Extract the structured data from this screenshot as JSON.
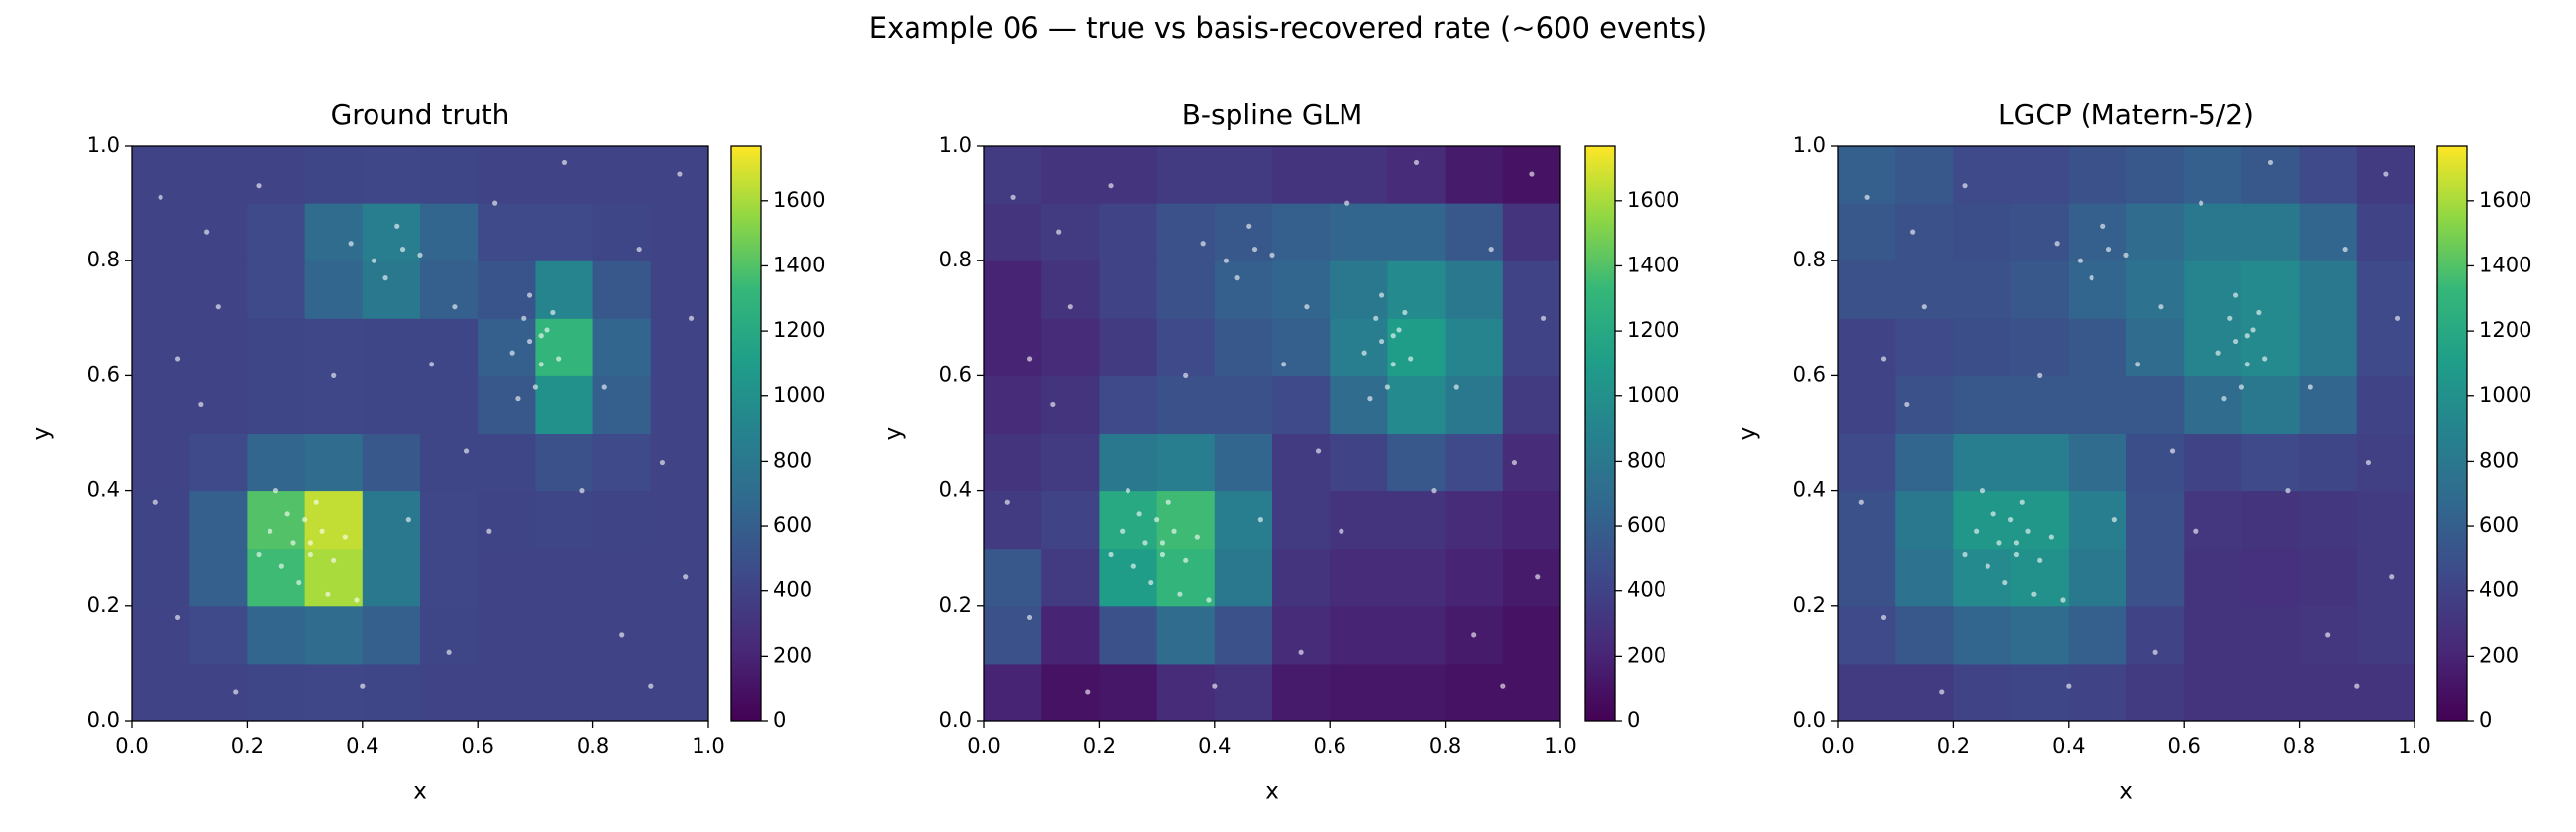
{
  "title": "Example 06 — true vs basis-recovered rate (~600 events)",
  "events": {
    "x": [
      0.28,
      0.31,
      0.33,
      0.26,
      0.3,
      0.35,
      0.24,
      0.29,
      0.32,
      0.37,
      0.27,
      0.34,
      0.22,
      0.31,
      0.39,
      0.25,
      0.69,
      0.71,
      0.68,
      0.72,
      0.7,
      0.66,
      0.74,
      0.69,
      0.73,
      0.67,
      0.71,
      0.42,
      0.47,
      0.44,
      0.5,
      0.38,
      0.46,
      0.05,
      0.12,
      0.08,
      0.15,
      0.55,
      0.62,
      0.85,
      0.92,
      0.88,
      0.95,
      0.58,
      0.18,
      0.4,
      0.78,
      0.96,
      0.52,
      0.22,
      0.63,
      0.82,
      0.04,
      0.48,
      0.9,
      0.13,
      0.75,
      0.35,
      0.56,
      0.08,
      0.97
    ],
    "y": [
      0.31,
      0.29,
      0.33,
      0.27,
      0.35,
      0.28,
      0.33,
      0.24,
      0.38,
      0.32,
      0.36,
      0.22,
      0.29,
      0.31,
      0.21,
      0.4,
      0.66,
      0.62,
      0.7,
      0.68,
      0.58,
      0.64,
      0.63,
      0.74,
      0.71,
      0.56,
      0.67,
      0.8,
      0.82,
      0.77,
      0.81,
      0.83,
      0.86,
      0.91,
      0.55,
      0.18,
      0.72,
      0.12,
      0.33,
      0.15,
      0.45,
      0.82,
      0.95,
      0.47,
      0.05,
      0.06,
      0.4,
      0.25,
      0.62,
      0.93,
      0.9,
      0.58,
      0.38,
      0.35,
      0.06,
      0.85,
      0.97,
      0.6,
      0.72,
      0.63,
      0.7
    ]
  },
  "chart_data": [
    {
      "type": "heatmap",
      "title": "Ground truth",
      "xlabel": "x",
      "ylabel": "y",
      "colormap": "viridis",
      "xlim": [
        0,
        1
      ],
      "ylim": [
        0,
        1
      ],
      "clim": [
        0,
        1770
      ],
      "xticks": [
        {
          "value": 0,
          "label": "0.0"
        },
        0.2,
        0.4,
        0.6,
        0.8,
        {
          "value": 1,
          "label": "1.0"
        }
      ],
      "yticks": [
        {
          "value": 0,
          "label": "0.0"
        },
        0.2,
        0.4,
        0.6,
        0.8,
        {
          "value": 1,
          "label": "1.0"
        }
      ],
      "cticks": [
        0,
        200,
        400,
        600,
        800,
        1000,
        1200,
        1400,
        1600
      ],
      "z": [
        [
          400,
          400,
          420,
          430,
          420,
          400,
          400,
          400,
          400,
          400
        ],
        [
          400,
          450,
          650,
          700,
          600,
          420,
          400,
          400,
          400,
          400
        ],
        [
          410,
          600,
          1350,
          1600,
          800,
          430,
          400,
          400,
          400,
          400
        ],
        [
          410,
          600,
          1400,
          1650,
          800,
          430,
          410,
          420,
          410,
          400
        ],
        [
          400,
          450,
          650,
          700,
          550,
          420,
          420,
          500,
          450,
          400
        ],
        [
          400,
          400,
          420,
          430,
          420,
          420,
          550,
          1000,
          600,
          400
        ],
        [
          400,
          400,
          420,
          430,
          420,
          420,
          600,
          1300,
          650,
          400
        ],
        [
          400,
          400,
          450,
          650,
          800,
          600,
          520,
          900,
          550,
          400
        ],
        [
          400,
          400,
          450,
          700,
          850,
          650,
          450,
          450,
          420,
          400
        ],
        [
          400,
          400,
          400,
          420,
          430,
          420,
          400,
          400,
          400,
          400
        ]
      ]
    },
    {
      "type": "heatmap",
      "title": "B-spline GLM",
      "xlabel": "x",
      "ylabel": "y",
      "colormap": "viridis",
      "xlim": [
        0,
        1
      ],
      "ylim": [
        0,
        1
      ],
      "clim": [
        0,
        1770
      ],
      "xticks": [
        {
          "value": 0,
          "label": "0.0"
        },
        0.2,
        0.4,
        0.6,
        0.8,
        {
          "value": 1,
          "label": "1.0"
        }
      ],
      "yticks": [
        {
          "value": 0,
          "label": "0.0"
        },
        0.2,
        0.4,
        0.6,
        0.8,
        {
          "value": 1,
          "label": "1.0"
        }
      ],
      "cticks": [
        0,
        200,
        400,
        600,
        800,
        1000,
        1200,
        1400,
        1600
      ],
      "z": [
        [
          200,
          100,
          120,
          250,
          300,
          150,
          120,
          120,
          100,
          100
        ],
        [
          500,
          200,
          500,
          700,
          500,
          250,
          200,
          200,
          150,
          100
        ],
        [
          550,
          350,
          1100,
          1300,
          800,
          300,
          250,
          250,
          200,
          150
        ],
        [
          350,
          400,
          1200,
          1350,
          850,
          350,
          300,
          300,
          250,
          200
        ],
        [
          300,
          350,
          800,
          850,
          650,
          350,
          400,
          550,
          450,
          250
        ],
        [
          250,
          300,
          450,
          500,
          500,
          450,
          700,
          950,
          800,
          350
        ],
        [
          200,
          250,
          350,
          450,
          550,
          600,
          850,
          1100,
          900,
          400
        ],
        [
          200,
          300,
          400,
          500,
          600,
          650,
          800,
          950,
          800,
          400
        ],
        [
          300,
          350,
          400,
          500,
          550,
          600,
          650,
          650,
          550,
          300
        ],
        [
          350,
          300,
          300,
          350,
          350,
          300,
          300,
          250,
          150,
          100
        ]
      ]
    },
    {
      "type": "heatmap",
      "title": "LGCP (Matern-5/2)",
      "xlabel": "x",
      "ylabel": "y",
      "colormap": "viridis",
      "xlim": [
        0,
        1
      ],
      "ylim": [
        0,
        1
      ],
      "clim": [
        0,
        1770
      ],
      "xticks": [
        {
          "value": 0,
          "label": "0.0"
        },
        0.2,
        0.4,
        0.6,
        0.8,
        {
          "value": 1,
          "label": "1.0"
        }
      ],
      "yticks": [
        {
          "value": 0,
          "label": "0.0"
        },
        0.2,
        0.4,
        0.6,
        0.8,
        {
          "value": 1,
          "label": "1.0"
        }
      ],
      "cticks": [
        0,
        200,
        400,
        600,
        800,
        1000,
        1200,
        1400,
        1600
      ],
      "z": [
        [
          350,
          350,
          400,
          420,
          400,
          350,
          300,
          300,
          300,
          300
        ],
        [
          450,
          550,
          650,
          700,
          600,
          400,
          300,
          300,
          320,
          350
        ],
        [
          500,
          750,
          950,
          1000,
          800,
          500,
          300,
          280,
          300,
          350
        ],
        [
          500,
          800,
          1050,
          1050,
          850,
          500,
          320,
          300,
          330,
          350
        ],
        [
          450,
          650,
          850,
          850,
          700,
          480,
          400,
          450,
          420,
          380
        ],
        [
          400,
          500,
          550,
          550,
          550,
          550,
          700,
          800,
          650,
          400
        ],
        [
          400,
          450,
          480,
          500,
          550,
          700,
          900,
          950,
          800,
          450
        ],
        [
          500,
          500,
          500,
          550,
          650,
          750,
          900,
          950,
          800,
          450
        ],
        [
          550,
          500,
          480,
          500,
          600,
          700,
          800,
          800,
          650,
          400
        ],
        [
          600,
          550,
          450,
          450,
          500,
          550,
          600,
          550,
          450,
          350
        ]
      ]
    }
  ]
}
